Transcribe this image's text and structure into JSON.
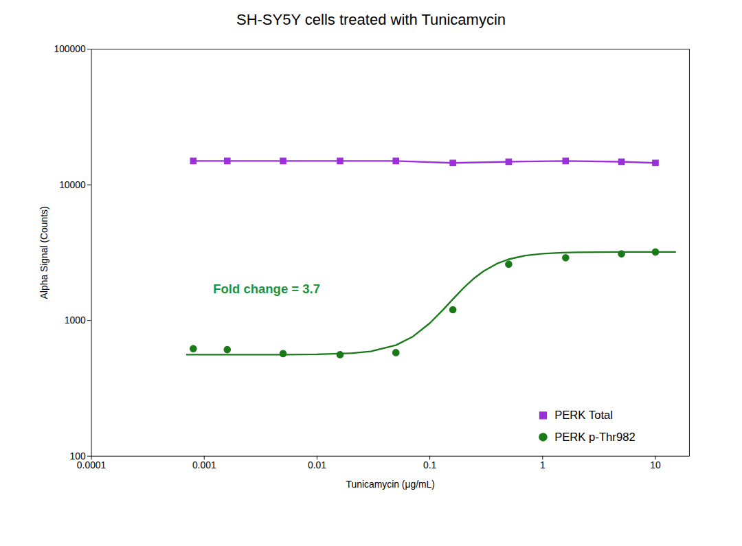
{
  "chart_data": {
    "type": "line",
    "title": "SH-SY5Y cells treated with Tunicamycin",
    "xlabel": "Tunicamycin (μg/mL)",
    "ylabel": "Alpha Signal (Counts)",
    "log": true,
    "xlim": [
      0.0001,
      20.0
    ],
    "ylim": [
      100,
      100000
    ],
    "xticks": [
      0.0001,
      0.001,
      0.01,
      0.1,
      1,
      10
    ],
    "yticks": [
      100,
      1000,
      10000,
      100000
    ],
    "grid": false,
    "legend": "lower right",
    "series": [
      {
        "name": "PERK Total",
        "type": "line",
        "color": "#9b30d9",
        "marker": "square",
        "line_style": "solid",
        "x": [
          0.0008,
          0.0016,
          0.005,
          0.016,
          0.05,
          0.16,
          0.5,
          1.6,
          5.0,
          10.0
        ],
        "values": [
          15000,
          15000,
          15000,
          15000,
          15000,
          14500,
          14800,
          15000,
          14800,
          14500
        ]
      },
      {
        "name": "PERK p-Thr982",
        "type": "scatter",
        "color": "#1a7a1a",
        "marker": "circle",
        "x": [
          0.0008,
          0.0016,
          0.005,
          0.016,
          0.05,
          0.16,
          0.5,
          1.6,
          5.0,
          10.0
        ],
        "values": [
          620,
          610,
          570,
          560,
          580,
          1200,
          2600,
          2900,
          3100,
          3200
        ],
        "errors": [
          35,
          20,
          20,
          20,
          20,
          50,
          70,
          70,
          50,
          50
        ],
        "fit": {
          "x": [
            0.0007,
            0.001,
            0.002,
            0.005,
            0.01,
            0.02,
            0.03,
            0.05,
            0.07,
            0.1,
            0.13,
            0.16,
            0.2,
            0.22,
            0.25,
            0.3,
            0.4,
            0.5,
            0.7,
            1,
            1.5,
            2,
            3,
            5,
            7,
            10,
            15
          ],
          "values": [
            560.01,
            560.02,
            560.09,
            560.64,
            562.94,
            573.44,
            592.55,
            657.64,
            756.72,
            956.0,
            1191.3,
            1435.6,
            1742.1,
            1880,
            2064.4,
            2313.6,
            2641.3,
            2827.5,
            3008.2,
            3108.9,
            3161.9,
            3179.6,
            3191.6,
            3197.3,
            3198.7,
            3199.4,
            3199.76
          ]
        }
      }
    ],
    "annotations": [
      {
        "text": "Fold change = 3.7",
        "x": 0.0012,
        "y": 1700,
        "color": "#1a9641"
      }
    ]
  }
}
